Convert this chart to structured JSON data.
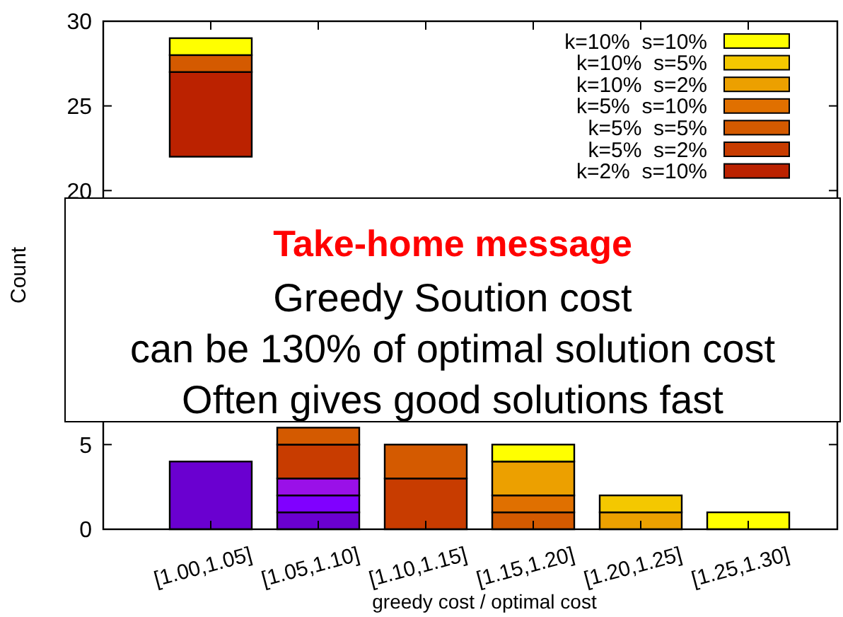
{
  "chart_data": {
    "type": "bar",
    "xlabel": "greedy cost / optimal cost",
    "ylabel": "Count",
    "categories": [
      "[1.00,1.05]",
      "[1.05,1.10]",
      "[1.10,1.15]",
      "[1.15,1.20]",
      "[1.20,1.25]",
      "[1.25,1.30]"
    ],
    "ylim": [
      0,
      30
    ],
    "yticks": [
      0,
      5,
      20,
      25,
      30
    ],
    "grid": false,
    "legend": "top right",
    "series": [
      {
        "color": "#6a00d0",
        "values": [
          4,
          1,
          null,
          null,
          null,
          null
        ],
        "base": [
          0,
          0,
          null,
          null,
          null,
          null
        ]
      },
      {
        "color": "#8000ff",
        "values": [
          null,
          1,
          null,
          null,
          null,
          null
        ],
        "base": [
          null,
          1,
          null,
          null,
          null,
          null
        ]
      },
      {
        "color": "#9a10e8",
        "values": [
          null,
          1,
          null,
          null,
          null,
          null
        ],
        "base": [
          null,
          2,
          null,
          null,
          null,
          null
        ]
      },
      {
        "name": "k=2%  s=10%",
        "color": "#bb2200",
        "values": [
          5,
          null,
          null,
          null,
          null,
          null
        ],
        "base": [
          22,
          null,
          null,
          null,
          null,
          null
        ]
      },
      {
        "name": "k=5%  s=2%",
        "color": "#c83c00",
        "values": [
          null,
          2,
          3,
          null,
          null,
          null
        ],
        "base": [
          null,
          3,
          0,
          null,
          null,
          null
        ]
      },
      {
        "name": "k=5%  s=5%",
        "color": "#d45a00",
        "values": [
          1,
          1,
          2,
          1,
          null,
          null
        ],
        "base": [
          27,
          5,
          3,
          0,
          null,
          null
        ]
      },
      {
        "name": "k=5%  s=10%",
        "color": "#e07000",
        "values": [
          null,
          null,
          null,
          1,
          null,
          null
        ],
        "base": [
          null,
          null,
          null,
          1,
          null,
          null
        ]
      },
      {
        "name": "k=10%  s=2%",
        "color": "#eca000",
        "values": [
          null,
          null,
          null,
          2,
          1,
          null
        ],
        "base": [
          null,
          null,
          null,
          2,
          0,
          null
        ]
      },
      {
        "name": "k=10%  s=5%",
        "color": "#f4c800",
        "values": [
          null,
          null,
          null,
          null,
          1,
          null
        ],
        "base": [
          null,
          null,
          null,
          null,
          1,
          null
        ]
      },
      {
        "name": "k=10%  s=10%",
        "color": "#ffff00",
        "values": [
          1,
          null,
          null,
          1,
          null,
          1
        ],
        "base": [
          28,
          null,
          null,
          4,
          null,
          0
        ]
      }
    ],
    "annotations": [
      "Take-home message",
      "Greedy Soution cost",
      "can be 130% of optimal solution cost",
      "Often gives good solutions fast"
    ]
  }
}
